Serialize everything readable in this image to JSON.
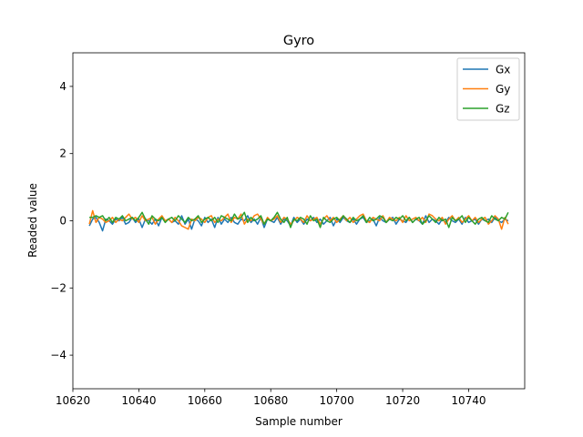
{
  "chart_data": {
    "type": "line",
    "title": "Gyro",
    "xlabel": "Sample number",
    "ylabel": "Readed value",
    "xlim": [
      10620,
      10757
    ],
    "ylim": [
      -5,
      5
    ],
    "xticks": [
      10620,
      10640,
      10660,
      10680,
      10700,
      10720,
      10740
    ],
    "yticks": [
      -4,
      -2,
      0,
      2,
      4
    ],
    "grid": false,
    "legend_position": "top-right",
    "x_start": 10625,
    "series": [
      {
        "name": "Gx",
        "color": "#1f77b4",
        "values": [
          -0.15,
          0.05,
          0.1,
          -0.05,
          -0.3,
          0.05,
          0.0,
          -0.1,
          0.05,
          0.0,
          0.1,
          -0.1,
          -0.05,
          0.1,
          -0.05,
          0.05,
          -0.2,
          0.05,
          0.0,
          -0.1,
          0.05,
          -0.15,
          0.1,
          0.0,
          0.05,
          -0.05,
          0.0,
          -0.1,
          0.15,
          -0.1,
          0.05,
          -0.25,
          0.05,
          0.0,
          -0.15,
          0.1,
          -0.05,
          0.05,
          -0.2,
          0.1,
          -0.1,
          0.05,
          -0.05,
          0.1,
          -0.05,
          -0.1,
          0.05,
          0.0,
          0.15,
          -0.05,
          0.05,
          -0.1,
          0.1,
          -0.2,
          0.05,
          0.0,
          -0.05,
          0.1,
          -0.1,
          0.05,
          0.0,
          -0.15,
          0.1,
          -0.05,
          0.05,
          -0.1,
          0.05,
          0.0,
          0.1,
          -0.05,
          0.05,
          -0.1,
          0.0,
          0.1,
          -0.15,
          0.05,
          -0.05,
          0.1,
          0.0,
          -0.05,
          0.05,
          -0.1,
          0.05,
          0.1,
          -0.05,
          0.0,
          0.05,
          -0.15,
          0.1,
          0.0,
          -0.05,
          0.05,
          0.1,
          -0.1,
          0.05,
          0.0,
          -0.05,
          0.1,
          -0.05,
          0.05,
          0.0,
          -0.1,
          0.15,
          -0.05,
          0.05,
          0.0,
          -0.1,
          0.05,
          -0.05,
          0.1,
          0.0,
          -0.05,
          0.05,
          -0.1,
          0.1,
          -0.05,
          0.0,
          0.05,
          -0.1,
          0.05,
          0.0,
          0.05,
          -0.05,
          0.1,
          0.0,
          -0.05,
          0.05,
          0.0
        ]
      },
      {
        "name": "Gy",
        "color": "#ff7f0e",
        "values": [
          -0.1,
          0.3,
          -0.05,
          0.1,
          0.05,
          -0.05,
          0.0,
          0.1,
          -0.05,
          0.05,
          0.0,
          0.1,
          0.2,
          0.05,
          0.1,
          -0.05,
          0.15,
          0.0,
          0.05,
          0.1,
          -0.1,
          0.05,
          0.15,
          0.0,
          0.05,
          -0.05,
          0.1,
          0.0,
          -0.15,
          -0.2,
          -0.25,
          0.05,
          0.0,
          0.1,
          0.05,
          -0.05,
          0.1,
          0.15,
          -0.05,
          0.05,
          0.0,
          0.1,
          0.2,
          -0.05,
          0.1,
          0.05,
          0.2,
          -0.1,
          0.05,
          0.0,
          0.15,
          0.2,
          0.05,
          -0.1,
          0.1,
          0.0,
          0.05,
          0.15,
          -0.05,
          0.1,
          0.05,
          -0.1,
          0.0,
          0.1,
          0.05,
          -0.05,
          0.15,
          0.0,
          0.05,
          0.1,
          -0.1,
          0.05,
          0.15,
          0.0,
          0.1,
          -0.05,
          0.05,
          0.15,
          0.0,
          0.1,
          -0.05,
          0.05,
          0.15,
          0.2,
          0.0,
          -0.05,
          0.1,
          0.05,
          0.0,
          0.15,
          -0.05,
          0.1,
          0.05,
          0.0,
          0.1,
          -0.05,
          0.15,
          0.0,
          0.05,
          0.1,
          0.0,
          0.1,
          -0.05,
          0.2,
          0.15,
          0.05,
          0.0,
          0.1,
          -0.1,
          0.05,
          0.15,
          0.0,
          0.1,
          -0.05,
          0.05,
          0.15,
          0.0,
          0.1,
          -0.05,
          0.05,
          0.1,
          -0.1,
          0.0,
          0.15,
          0.05,
          -0.25,
          0.1,
          -0.1
        ]
      },
      {
        "name": "Gz",
        "color": "#2ca02c",
        "values": [
          0.1,
          0.1,
          0.15,
          0.1,
          0.15,
          0.0,
          0.1,
          -0.05,
          0.1,
          0.05,
          0.15,
          0.0,
          0.05,
          0.1,
          0.0,
          0.1,
          0.25,
          0.05,
          -0.1,
          0.15,
          0.05,
          0.0,
          0.1,
          -0.05,
          0.05,
          0.1,
          0.0,
          0.15,
          0.05,
          -0.05,
          0.1,
          0.0,
          0.05,
          0.15,
          -0.05,
          0.05,
          0.1,
          0.0,
          0.1,
          -0.05,
          0.15,
          0.1,
          0.05,
          0.0,
          0.2,
          0.05,
          0.1,
          0.25,
          -0.05,
          0.1,
          0.0,
          0.05,
          0.15,
          -0.1,
          0.05,
          0.0,
          0.1,
          0.25,
          0.05,
          -0.05,
          0.1,
          -0.2,
          0.05,
          0.0,
          0.1,
          0.05,
          -0.1,
          0.15,
          0.0,
          0.05,
          -0.2,
          0.1,
          0.0,
          -0.05,
          0.05,
          0.1,
          0.0,
          0.15,
          0.05,
          -0.05,
          0.1,
          0.0,
          0.05,
          0.15,
          -0.05,
          0.1,
          0.0,
          0.05,
          0.15,
          0.1,
          -0.05,
          0.05,
          0.0,
          0.1,
          0.05,
          0.15,
          0.0,
          0.1,
          -0.05,
          0.05,
          0.1,
          -0.1,
          0.0,
          0.15,
          0.05,
          -0.05,
          0.1,
          0.0,
          0.05,
          -0.2,
          0.1,
          0.0,
          0.05,
          0.15,
          -0.05,
          0.1,
          0.0,
          -0.1,
          0.05,
          0.1,
          0.0,
          -0.05,
          0.15,
          0.05,
          0.0,
          0.1,
          0.05,
          0.25
        ]
      }
    ]
  }
}
